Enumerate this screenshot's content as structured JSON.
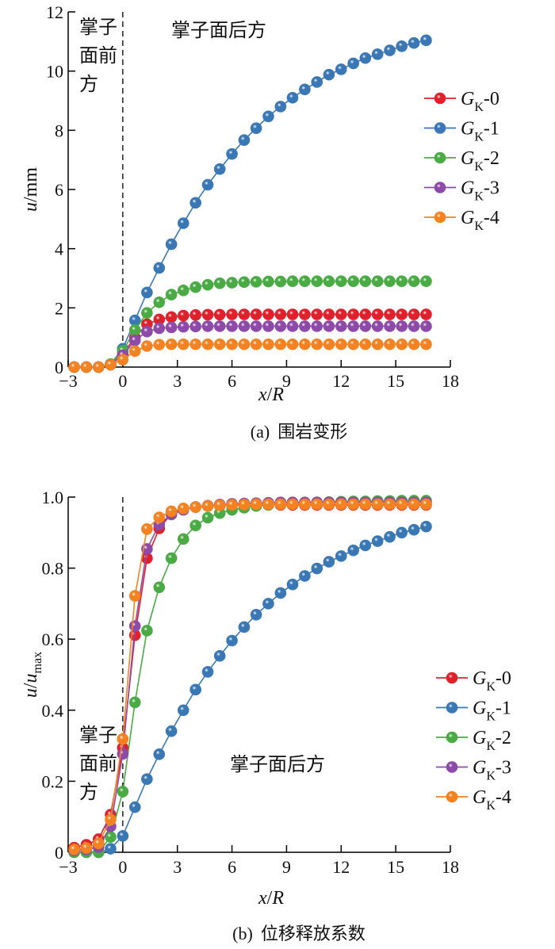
{
  "chart_data": [
    {
      "type": "line",
      "panel": "a",
      "caption_prefix": "(a)",
      "caption": "围岩变形",
      "xlabel": {
        "var": "x",
        "sep": "/",
        "var2": "R"
      },
      "ylabel": {
        "var": "u",
        "unit": "/mm",
        "sub": ""
      },
      "xlim": [
        -3,
        18
      ],
      "ylim": [
        0,
        12
      ],
      "xticks": [
        -3,
        0,
        3,
        6,
        9,
        12,
        15,
        18
      ],
      "xtick_labels": [
        "−3",
        "0",
        "3",
        "6",
        "9",
        "12",
        "15",
        "18"
      ],
      "yticks": [
        0,
        2,
        4,
        6,
        8,
        10,
        12
      ],
      "ytick_labels": [
        "0",
        "2",
        "4",
        "6",
        "8",
        "10",
        "12"
      ],
      "annotations": {
        "front": [
          "掌子",
          "面前",
          "方"
        ],
        "behind": "掌子面后方"
      },
      "legend_position": "center-right",
      "x": [
        -2.67,
        -2,
        -1.33,
        -0.67,
        0,
        0.67,
        1.33,
        2,
        2.67,
        3.33,
        4,
        4.67,
        5.33,
        6,
        6.67,
        7.33,
        8,
        8.67,
        9.33,
        10,
        10.67,
        11.33,
        12,
        12.67,
        13.33,
        14,
        14.67,
        15.33,
        16,
        16.67
      ],
      "series": [
        {
          "name": {
            "main": "G",
            "sub": "K",
            "suffix": "-0"
          },
          "color": "#e0202a",
          "values": [
            0,
            0,
            0,
            0.08,
            0.45,
            1.0,
            1.45,
            1.61,
            1.69,
            1.74,
            1.76,
            1.77,
            1.77,
            1.78,
            1.78,
            1.78,
            1.78,
            1.78,
            1.78,
            1.78,
            1.78,
            1.78,
            1.78,
            1.78,
            1.78,
            1.78,
            1.78,
            1.78,
            1.78,
            1.78
          ]
        },
        {
          "name": {
            "main": "G",
            "sub": "K",
            "suffix": "-1"
          },
          "color": "#3a78b5",
          "values": [
            0,
            0,
            0,
            0.1,
            0.62,
            1.58,
            2.52,
            3.35,
            4.15,
            4.86,
            5.55,
            6.16,
            6.69,
            7.2,
            7.67,
            8.07,
            8.47,
            8.8,
            9.1,
            9.38,
            9.63,
            9.88,
            10.06,
            10.26,
            10.44,
            10.57,
            10.7,
            10.84,
            10.95,
            11.04
          ]
        },
        {
          "name": {
            "main": "G",
            "sub": "K",
            "suffix": "-2"
          },
          "color": "#4aab45",
          "values": [
            0,
            0,
            0,
            0.1,
            0.55,
            1.25,
            1.83,
            2.19,
            2.45,
            2.59,
            2.7,
            2.78,
            2.83,
            2.85,
            2.87,
            2.88,
            2.89,
            2.89,
            2.9,
            2.9,
            2.9,
            2.9,
            2.9,
            2.9,
            2.9,
            2.9,
            2.9,
            2.9,
            2.9,
            2.9
          ]
        },
        {
          "name": {
            "main": "G",
            "sub": "K",
            "suffix": "-3"
          },
          "color": "#8e4aa8",
          "values": [
            0,
            0,
            0,
            0.08,
            0.4,
            0.9,
            1.2,
            1.31,
            1.34,
            1.36,
            1.37,
            1.38,
            1.38,
            1.38,
            1.38,
            1.38,
            1.38,
            1.38,
            1.38,
            1.38,
            1.38,
            1.38,
            1.38,
            1.38,
            1.38,
            1.38,
            1.38,
            1.38,
            1.38,
            1.38
          ]
        },
        {
          "name": {
            "main": "G",
            "sub": "K",
            "suffix": "-4"
          },
          "color": "#f58220",
          "values": [
            0,
            0,
            0,
            0.08,
            0.25,
            0.54,
            0.71,
            0.76,
            0.77,
            0.77,
            0.77,
            0.77,
            0.77,
            0.77,
            0.77,
            0.77,
            0.77,
            0.77,
            0.77,
            0.77,
            0.77,
            0.77,
            0.77,
            0.77,
            0.77,
            0.77,
            0.77,
            0.77,
            0.77,
            0.77
          ]
        }
      ]
    },
    {
      "type": "line",
      "panel": "b",
      "caption_prefix": "(b)",
      "caption": "位移释放系数",
      "xlabel": {
        "var": "x",
        "sep": "/",
        "var2": "R"
      },
      "ylabel": {
        "var": "u",
        "unit": "/",
        "var2": "u",
        "sub": "max"
      },
      "xlim": [
        -3,
        18
      ],
      "ylim": [
        0,
        1.0
      ],
      "xticks": [
        -3,
        0,
        3,
        6,
        9,
        12,
        15,
        18
      ],
      "xtick_labels": [
        "−3",
        "0",
        "3",
        "6",
        "9",
        "12",
        "15",
        "18"
      ],
      "yticks": [
        0,
        0.2,
        0.4,
        0.6,
        0.8,
        1.0
      ],
      "ytick_labels": [
        "0",
        "0.2",
        "0.4",
        "0.6",
        "0.8",
        "1.0"
      ],
      "annotations": {
        "front": [
          "掌子",
          "面前",
          "方"
        ],
        "behind": "掌子面后方"
      },
      "legend_position": "bottom-right",
      "x": [
        -2.67,
        -2,
        -1.33,
        -0.67,
        0,
        0.67,
        1.33,
        2,
        2.67,
        3.33,
        4,
        4.67,
        5.33,
        6,
        6.67,
        7.33,
        8,
        8.67,
        9.33,
        10,
        10.67,
        11.33,
        12,
        12.67,
        13.33,
        14,
        14.67,
        15.33,
        16,
        16.67
      ],
      "series": [
        {
          "name": {
            "main": "G",
            "sub": "K",
            "suffix": "-0"
          },
          "color": "#e0202a",
          "values": [
            0.013,
            0.021,
            0.037,
            0.106,
            0.294,
            0.611,
            0.828,
            0.912,
            0.953,
            0.967,
            0.972,
            0.975,
            0.976,
            0.977,
            0.978,
            0.978,
            0.978,
            0.978,
            0.978,
            0.978,
            0.978,
            0.978,
            0.978,
            0.978,
            0.978,
            0.978,
            0.978,
            0.978,
            0.978,
            0.978
          ]
        },
        {
          "name": {
            "main": "G",
            "sub": "K",
            "suffix": "-1"
          },
          "color": "#3a78b5",
          "values": [
            0,
            0,
            0,
            0.01,
            0.046,
            0.127,
            0.206,
            0.276,
            0.341,
            0.4,
            0.458,
            0.508,
            0.553,
            0.596,
            0.634,
            0.669,
            0.7,
            0.73,
            0.754,
            0.778,
            0.799,
            0.818,
            0.834,
            0.85,
            0.864,
            0.876,
            0.888,
            0.9,
            0.908,
            0.917
          ]
        },
        {
          "name": {
            "main": "G",
            "sub": "K",
            "suffix": "-2"
          },
          "color": "#4aab45",
          "values": [
            0,
            0,
            0,
            0.043,
            0.171,
            0.422,
            0.624,
            0.746,
            0.828,
            0.882,
            0.92,
            0.942,
            0.955,
            0.964,
            0.97,
            0.975,
            0.978,
            0.98,
            0.982,
            0.984,
            0.985,
            0.986,
            0.987,
            0.988,
            0.988,
            0.989,
            0.989,
            0.99,
            0.99,
            0.99
          ]
        },
        {
          "name": {
            "main": "G",
            "sub": "K",
            "suffix": "-3"
          },
          "color": "#8e4aa8",
          "values": [
            0.005,
            0.008,
            0.015,
            0.073,
            0.277,
            0.637,
            0.854,
            0.923,
            0.951,
            0.964,
            0.972,
            0.976,
            0.979,
            0.981,
            0.982,
            0.983,
            0.984,
            0.985,
            0.985,
            0.985,
            0.985,
            0.985,
            0.985,
            0.985,
            0.985,
            0.985,
            0.985,
            0.985,
            0.985,
            0.985
          ]
        },
        {
          "name": {
            "main": "G",
            "sub": "K",
            "suffix": "-4"
          },
          "color": "#f58220",
          "values": [
            0.008,
            0.012,
            0.025,
            0.092,
            0.319,
            0.722,
            0.91,
            0.943,
            0.96,
            0.968,
            0.972,
            0.975,
            0.977,
            0.978,
            0.979,
            0.98,
            0.98,
            0.98,
            0.98,
            0.98,
            0.98,
            0.98,
            0.98,
            0.98,
            0.98,
            0.98,
            0.98,
            0.98,
            0.98,
            0.98
          ]
        }
      ]
    }
  ]
}
